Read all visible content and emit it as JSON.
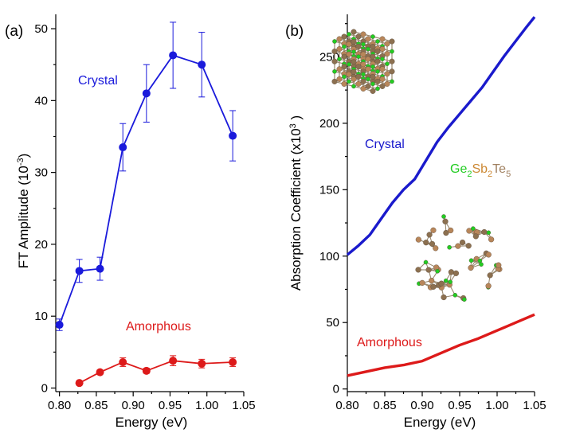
{
  "chart_data": [
    {
      "type": "line",
      "panel_label": "(a)",
      "xlabel": "Energy (eV)",
      "ylabel": {
        "main": "FT Amplitude (10",
        "sup": "-3",
        "tail": ")"
      },
      "xlim": [
        0.795,
        1.05
      ],
      "ylim": [
        -0.5,
        52
      ],
      "xticks": [
        "0.80",
        "0.85",
        "0.90",
        "0.95",
        "1.00",
        "1.05"
      ],
      "yticks": [
        "0",
        "10",
        "20",
        "30",
        "40",
        "50"
      ],
      "grid": false,
      "series": [
        {
          "name": "Crystal",
          "color": "#1a1adb",
          "x": [
            0.8,
            0.827,
            0.855,
            0.886,
            0.918,
            0.954,
            0.993,
            1.035
          ],
          "y": [
            8.8,
            16.3,
            16.6,
            33.5,
            41.0,
            46.3,
            45.0,
            35.1
          ],
          "err": [
            0.8,
            1.6,
            1.6,
            3.3,
            4.0,
            4.6,
            4.5,
            3.5
          ]
        },
        {
          "name": "Amorphous",
          "color": "#dd1a1a",
          "x": [
            0.827,
            0.855,
            0.886,
            0.918,
            0.954,
            0.993,
            1.035
          ],
          "y": [
            0.7,
            2.2,
            3.6,
            2.4,
            3.8,
            3.4,
            3.6
          ],
          "err": [
            0.15,
            0.3,
            0.6,
            0.35,
            0.7,
            0.6,
            0.6
          ]
        }
      ]
    },
    {
      "type": "line",
      "panel_label": "(b)",
      "xlabel": "Energy (eV)",
      "ylabel": {
        "main": "Absorption Coefficient (x10",
        "sup": "3",
        "tail": " )"
      },
      "xlim": [
        0.8,
        1.05
      ],
      "ylim": [
        -2,
        282
      ],
      "xticks": [
        "0.80",
        "0.85",
        "0.90",
        "0.95",
        "1.00",
        "1.05"
      ],
      "yticks": [
        "0",
        "50",
        "100",
        "150",
        "200",
        "250"
      ],
      "grid": false,
      "series": [
        {
          "name": "Crystal",
          "color": "#1a1acc",
          "x": [
            0.8,
            0.815,
            0.83,
            0.845,
            0.86,
            0.875,
            0.89,
            0.905,
            0.92,
            0.935,
            0.95,
            0.965,
            0.98,
            0.995,
            1.01,
            1.025,
            1.04,
            1.05
          ],
          "y": [
            101,
            108,
            116,
            128,
            140,
            150,
            158,
            172,
            186,
            197,
            207,
            217,
            227,
            239,
            251,
            262,
            273,
            280
          ]
        },
        {
          "name": "Amorphous",
          "color": "#dd1a1a",
          "x": [
            0.8,
            0.825,
            0.85,
            0.875,
            0.9,
            0.925,
            0.95,
            0.975,
            1.0,
            1.025,
            1.05
          ],
          "y": [
            10,
            13,
            16,
            18,
            21,
            27,
            33,
            38,
            44,
            50,
            56
          ]
        }
      ],
      "compound_label": {
        "parts": [
          {
            "text": "Ge",
            "color": "#22cc22"
          },
          {
            "text": "2",
            "color": "#22cc22",
            "sub": true
          },
          {
            "text": "Sb",
            "color": "#cc8833"
          },
          {
            "text": "2",
            "color": "#cc8833",
            "sub": true
          },
          {
            "text": "Te",
            "color": "#a08060"
          },
          {
            "text": "5",
            "color": "#a08060",
            "sub": true
          }
        ]
      },
      "insets": [
        "crystal-structure-illustration",
        "amorphous-structure-illustration"
      ]
    }
  ],
  "colors": {
    "ge_atom": "#22cc22",
    "sb_atom": "#b8865a",
    "te_atom": "#8c7050",
    "bond": "#9a8a70"
  }
}
